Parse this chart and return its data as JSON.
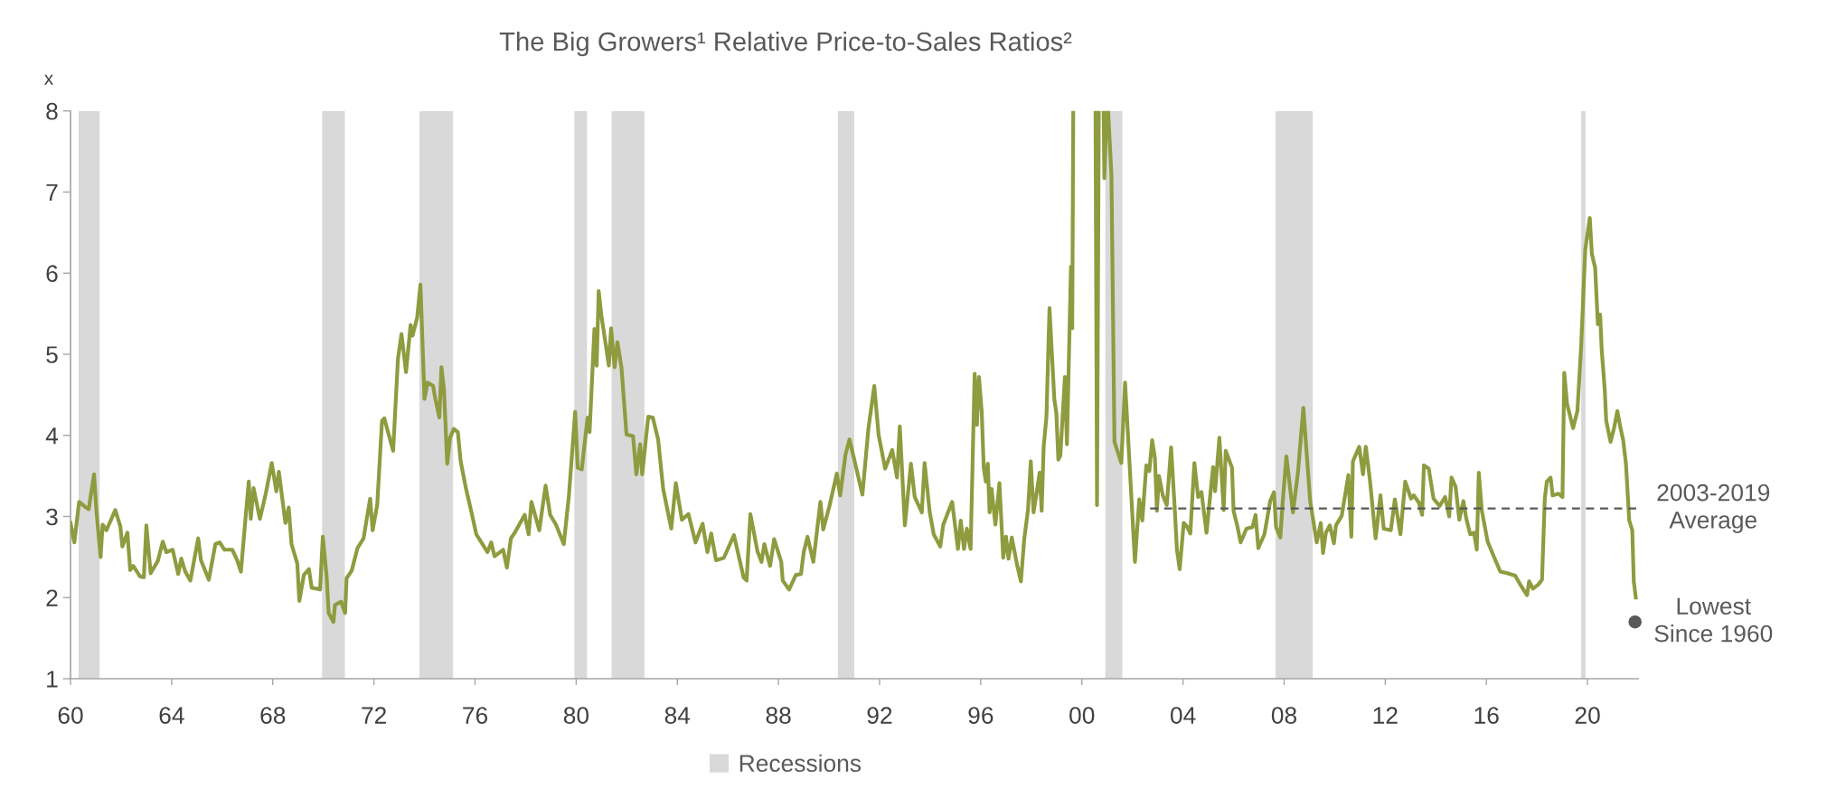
{
  "chart_data": {
    "type": "line",
    "title": "The Big Growers¹ Relative Price-to-Sales Ratios²",
    "ylabel": "x",
    "xlim": [
      1960,
      2022
    ],
    "xticks": [
      {
        "value": 1960,
        "label": "60"
      },
      {
        "value": 1964,
        "label": "64"
      },
      {
        "value": 1968,
        "label": "68"
      },
      {
        "value": 1972,
        "label": "72"
      },
      {
        "value": 1976,
        "label": "76"
      },
      {
        "value": 1980,
        "label": "80"
      },
      {
        "value": 1984,
        "label": "84"
      },
      {
        "value": 1988,
        "label": "88"
      },
      {
        "value": 1992,
        "label": "92"
      },
      {
        "value": 1996,
        "label": "96"
      },
      {
        "value": 2000,
        "label": "00"
      },
      {
        "value": 2004,
        "label": "04"
      },
      {
        "value": 2008,
        "label": "08"
      },
      {
        "value": 2012,
        "label": "12"
      },
      {
        "value": 2016,
        "label": "16"
      },
      {
        "value": 2020,
        "label": "20"
      }
    ],
    "ylim": [
      1,
      8
    ],
    "yticks": [
      1,
      2,
      3,
      4,
      5,
      6,
      7,
      8
    ],
    "grid": false,
    "legend": "bottom",
    "line_style": "solid",
    "marker": "none",
    "bands": [
      {
        "axis": "x",
        "from": 1960.32,
        "to": 1961.15,
        "label": "Recessions",
        "color": "#d9d9d9"
      },
      {
        "axis": "x",
        "from": 1969.95,
        "to": 1970.85,
        "color": "#d9d9d9"
      },
      {
        "axis": "x",
        "from": 1973.8,
        "to": 1975.13,
        "color": "#d9d9d9"
      },
      {
        "axis": "x",
        "from": 1979.93,
        "to": 1980.43,
        "color": "#d9d9d9"
      },
      {
        "axis": "x",
        "from": 1981.4,
        "to": 1982.7,
        "color": "#d9d9d9"
      },
      {
        "axis": "x",
        "from": 1990.35,
        "to": 1991.0,
        "color": "#d9d9d9"
      },
      {
        "axis": "x",
        "from": 2000.93,
        "to": 2001.6,
        "color": "#d9d9d9"
      },
      {
        "axis": "x",
        "from": 2007.66,
        "to": 2009.13,
        "color": "#d9d9d9"
      },
      {
        "axis": "x",
        "from": 2019.75,
        "to": 2019.92,
        "color": "#d9d9d9"
      }
    ],
    "series": [
      {
        "type": "line",
        "color": "#8f9b3f",
        "x": [
          1960.0,
          1960.15,
          1960.34,
          1960.57,
          1960.72,
          1960.93,
          1961.03,
          1961.19,
          1961.27,
          1961.42,
          1961.77,
          1961.97,
          1962.05,
          1962.25,
          1962.36,
          1962.48,
          1962.75,
          1962.9,
          1963.0,
          1963.17,
          1963.45,
          1963.65,
          1963.79,
          1964.04,
          1964.26,
          1964.38,
          1964.54,
          1964.74,
          1965.05,
          1965.16,
          1965.47,
          1965.73,
          1965.9,
          1966.09,
          1966.4,
          1966.59,
          1966.74,
          1966.9,
          1967.05,
          1967.13,
          1967.24,
          1967.49,
          1967.72,
          1967.96,
          1968.14,
          1968.24,
          1968.5,
          1968.63,
          1968.74,
          1968.97,
          1969.05,
          1969.23,
          1969.43,
          1969.54,
          1969.74,
          1969.87,
          1969.98,
          1970.13,
          1970.21,
          1970.4,
          1970.46,
          1970.7,
          1970.86,
          1970.92,
          1971.12,
          1971.35,
          1971.59,
          1971.85,
          1971.95,
          1972.13,
          1972.32,
          1972.41,
          1972.76,
          1972.95,
          1973.09,
          1973.27,
          1973.45,
          1973.53,
          1973.71,
          1973.84,
          1974.0,
          1974.12,
          1974.34,
          1974.43,
          1974.59,
          1974.67,
          1974.77,
          1974.9,
          1975.01,
          1975.16,
          1975.32,
          1975.43,
          1975.63,
          1975.86,
          1976.05,
          1976.25,
          1976.49,
          1976.64,
          1976.77,
          1977.11,
          1977.26,
          1977.42,
          1977.57,
          1977.96,
          1978.12,
          1978.23,
          1978.54,
          1978.79,
          1978.97,
          1979.2,
          1979.51,
          1979.71,
          1979.96,
          1980.06,
          1980.22,
          1980.45,
          1980.53,
          1980.72,
          1980.81,
          1980.89,
          1981.0,
          1981.14,
          1981.29,
          1981.38,
          1981.52,
          1981.63,
          1981.79,
          1981.99,
          1982.25,
          1982.38,
          1982.53,
          1982.61,
          1982.85,
          1983.03,
          1983.24,
          1983.44,
          1983.76,
          1983.94,
          1984.18,
          1984.44,
          1984.72,
          1985.0,
          1985.19,
          1985.34,
          1985.53,
          1985.84,
          1986.24,
          1986.62,
          1986.74,
          1986.89,
          1987.17,
          1987.33,
          1987.44,
          1987.67,
          1987.83,
          1988.11,
          1988.17,
          1988.42,
          1988.69,
          1988.89,
          1989.0,
          1989.15,
          1989.38,
          1989.66,
          1989.77,
          1990.01,
          1990.31,
          1990.44,
          1990.65,
          1990.81,
          1991.09,
          1991.32,
          1991.56,
          1991.79,
          1991.96,
          1992.22,
          1992.5,
          1992.69,
          1992.8,
          1993.0,
          1993.24,
          1993.39,
          1993.67,
          1993.78,
          1993.98,
          1994.14,
          1994.4,
          1994.52,
          1994.87,
          1995.1,
          1995.21,
          1995.34,
          1995.45,
          1995.6,
          1995.76,
          1995.85,
          1995.93,
          1996.04,
          1996.12,
          1996.2,
          1996.28,
          1996.35,
          1996.43,
          1996.58,
          1996.74,
          1996.89,
          1997.0,
          1997.1,
          1997.23,
          1997.44,
          1997.59,
          1997.72,
          1997.87,
          1997.98,
          1998.09,
          1998.21,
          1998.33,
          1998.41,
          1998.49,
          1998.6,
          1998.72,
          1998.91,
          1998.99,
          1999.07,
          1999.15,
          1999.33,
          1999.41,
          1999.57,
          1999.62,
          1999.66,
          2000.1,
          2000.54,
          2000.6,
          2000.67,
          2000.76,
          2000.86,
          2000.89,
          2000.98,
          2001.01,
          2001.04,
          2001.17,
          2001.29,
          2001.56,
          2001.71,
          2002.1,
          2002.27,
          2002.39,
          2002.55,
          2002.67,
          2002.78,
          2002.89,
          2002.97,
          2003.05,
          2003.2,
          2003.36,
          2003.53,
          2003.67,
          2003.76,
          2003.87,
          2004.03,
          2004.15,
          2004.29,
          2004.45,
          2004.6,
          2004.73,
          2004.93,
          2005.19,
          2005.27,
          2005.44,
          2005.61,
          2005.69,
          2005.94,
          2006.0,
          2006.15,
          2006.28,
          2006.51,
          2006.75,
          2006.87,
          2006.98,
          2007.22,
          2007.45,
          2007.6,
          2007.68,
          2007.85,
          2007.94,
          2008.09,
          2008.35,
          2008.55,
          2008.76,
          2009.03,
          2009.29,
          2009.45,
          2009.54,
          2009.65,
          2009.81,
          2009.97,
          2010.05,
          2010.28,
          2010.54,
          2010.66,
          2010.72,
          2010.97,
          2011.12,
          2011.23,
          2011.39,
          2011.62,
          2011.81,
          2011.94,
          2012.22,
          2012.38,
          2012.6,
          2012.79,
          2013.02,
          2013.13,
          2013.33,
          2013.46,
          2013.53,
          2013.72,
          2013.91,
          2014.15,
          2014.37,
          2014.53,
          2014.62,
          2014.78,
          2014.93,
          2015.09,
          2015.2,
          2015.36,
          2015.51,
          2015.62,
          2015.7,
          2015.82,
          2016.05,
          2016.29,
          2016.55,
          2016.83,
          2017.14,
          2017.38,
          2017.61,
          2017.69,
          2017.84,
          2018.05,
          2018.2,
          2018.31,
          2018.39,
          2018.54,
          2018.62,
          2018.85,
          2019.01,
          2019.08,
          2019.19,
          2019.43,
          2019.6,
          2019.75,
          2019.91,
          2020.09,
          2020.17,
          2020.3,
          2020.41,
          2020.5,
          2020.56,
          2020.68,
          2020.74,
          2020.91,
          2021.05,
          2021.18,
          2021.3,
          2021.41,
          2021.52,
          2021.65,
          2021.77,
          2021.83,
          2021.91
        ],
        "values": [
          2.92,
          2.68,
          3.18,
          3.12,
          3.09,
          3.52,
          3.05,
          2.5,
          2.9,
          2.83,
          3.08,
          2.88,
          2.63,
          2.8,
          2.34,
          2.39,
          2.26,
          2.25,
          2.89,
          2.3,
          2.45,
          2.69,
          2.56,
          2.59,
          2.29,
          2.48,
          2.32,
          2.21,
          2.73,
          2.46,
          2.22,
          2.66,
          2.68,
          2.59,
          2.59,
          2.46,
          2.32,
          2.9,
          3.43,
          2.97,
          3.35,
          2.97,
          3.28,
          3.66,
          3.31,
          3.55,
          2.92,
          3.11,
          2.66,
          2.42,
          1.96,
          2.28,
          2.35,
          2.12,
          2.11,
          2.1,
          2.75,
          2.26,
          1.81,
          1.7,
          1.91,
          1.95,
          1.81,
          2.24,
          2.33,
          2.61,
          2.73,
          3.22,
          2.83,
          3.14,
          4.18,
          4.21,
          3.81,
          4.94,
          5.25,
          4.78,
          5.36,
          5.23,
          5.45,
          5.86,
          4.45,
          4.65,
          4.61,
          4.45,
          4.22,
          4.84,
          4.57,
          3.65,
          3.97,
          4.08,
          4.04,
          3.68,
          3.36,
          3.05,
          2.78,
          2.68,
          2.56,
          2.68,
          2.51,
          2.59,
          2.37,
          2.73,
          2.8,
          3.02,
          2.78,
          3.18,
          2.83,
          3.38,
          3.02,
          2.9,
          2.66,
          3.25,
          4.29,
          3.6,
          3.58,
          4.22,
          4.04,
          5.31,
          4.86,
          5.78,
          5.47,
          5.18,
          4.86,
          5.32,
          4.84,
          5.15,
          4.84,
          4.01,
          3.99,
          3.52,
          3.89,
          3.52,
          4.23,
          4.22,
          3.95,
          3.34,
          2.85,
          3.41,
          2.96,
          3.03,
          2.68,
          2.91,
          2.56,
          2.79,
          2.46,
          2.49,
          2.77,
          2.25,
          2.21,
          3.03,
          2.57,
          2.44,
          2.66,
          2.39,
          2.72,
          2.44,
          2.21,
          2.1,
          2.28,
          2.29,
          2.56,
          2.75,
          2.44,
          3.18,
          2.84,
          3.12,
          3.53,
          3.26,
          3.76,
          3.95,
          3.58,
          3.27,
          4.09,
          4.61,
          4.01,
          3.59,
          3.82,
          3.48,
          4.11,
          2.89,
          3.65,
          3.24,
          3.05,
          3.66,
          3.06,
          2.78,
          2.63,
          2.9,
          3.18,
          2.6,
          2.95,
          2.6,
          2.85,
          2.6,
          4.76,
          4.13,
          4.72,
          4.29,
          3.6,
          3.43,
          3.65,
          3.05,
          3.34,
          2.9,
          3.41,
          2.49,
          2.75,
          2.48,
          2.74,
          2.4,
          2.2,
          2.72,
          3.08,
          3.68,
          3.05,
          3.29,
          3.54,
          3.07,
          3.86,
          4.23,
          5.57,
          4.45,
          4.28,
          3.7,
          3.75,
          4.72,
          3.89,
          6.08,
          5.32,
          8,
          null,
          8,
          3.14,
          8,
          null,
          8,
          7.17,
          8,
          null,
          8,
          7.21,
          3.92,
          3.66,
          4.65,
          2.44,
          3.21,
          2.95,
          3.63,
          3.56,
          3.94,
          3.72,
          3.07,
          3.5,
          3.26,
          3.14,
          3.85,
          3.12,
          2.59,
          2.35,
          2.92,
          2.88,
          2.79,
          3.66,
          3.24,
          3.3,
          2.8,
          3.61,
          3.31,
          3.97,
          3.08,
          3.81,
          3.6,
          3.07,
          2.88,
          2.68,
          2.85,
          2.87,
          3.02,
          2.61,
          2.78,
          3.19,
          3.3,
          2.87,
          2.74,
          3.16,
          3.74,
          3.05,
          3.55,
          4.34,
          3.19,
          2.68,
          2.92,
          2.55,
          2.8,
          2.89,
          2.67,
          2.89,
          3.01,
          3.51,
          2.75,
          3.68,
          3.86,
          3.52,
          3.86,
          3.46,
          2.73,
          3.26,
          2.85,
          2.83,
          3.21,
          2.78,
          3.43,
          3.22,
          3.26,
          3.17,
          3.02,
          3.63,
          3.59,
          3.22,
          3.13,
          3.24,
          3.0,
          3.48,
          3.37,
          2.96,
          3.19,
          2.98,
          2.78,
          2.8,
          2.59,
          3.54,
          3.07,
          2.69,
          2.51,
          2.32,
          2.3,
          2.27,
          2.14,
          2.03,
          2.2,
          2.11,
          2.16,
          2.22,
          3.22,
          3.43,
          3.48,
          3.26,
          3.28,
          3.24,
          4.77,
          4.39,
          4.09,
          4.3,
          5.11,
          6.29,
          6.68,
          6.24,
          6.07,
          5.37,
          5.49,
          5.06,
          4.57,
          4.18,
          3.92,
          4.09,
          4.3,
          4.1,
          3.94,
          3.65,
          2.95,
          2.83,
          2.2,
          2.0
        ]
      },
      {
        "type": "line",
        "name": "2003-2019\nAverage",
        "color": "#595959",
        "line_style": "dashed",
        "x": [
          2002.7,
          2021.96
        ],
        "values": [
          3.1,
          3.1
        ]
      },
      {
        "type": "scatter",
        "name": "Lowest\nSince 1960",
        "color": "#58595b",
        "marker": "circle",
        "x": [
          2021.88
        ],
        "values": [
          1.7
        ]
      }
    ]
  }
}
